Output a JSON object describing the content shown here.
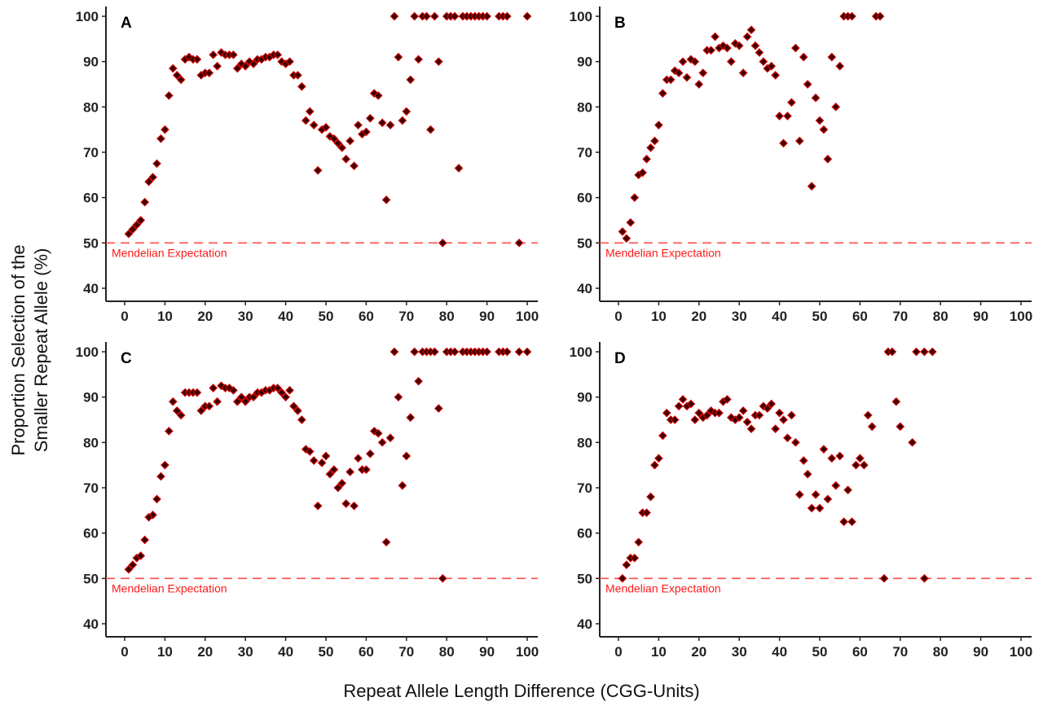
{
  "chart_data": {
    "type": "scatter",
    "xlabel": "Repeat Allele Length Difference (CGG-Units)",
    "ylabel_lines": [
      "Proportion Selection of the",
      "Smaller Repeat Allele (%)"
    ],
    "xlim": [
      -3,
      104
    ],
    "ylim": [
      37,
      101
    ],
    "xticks": [
      0,
      10,
      20,
      30,
      40,
      50,
      60,
      70,
      80,
      90,
      100
    ],
    "yticks": [
      40,
      50,
      60,
      70,
      80,
      90,
      100
    ],
    "grid": false,
    "marker": "diamond",
    "colors": {
      "marker_fill": "#3a0000",
      "marker_edge": "#cc0000",
      "reference_line": "#ff4d4d",
      "reference_label": "#ff1a1a"
    },
    "reference_line": {
      "y": 50,
      "label": "Mendelian Expectation",
      "style": "dashed"
    },
    "panels": [
      {
        "label": "A",
        "points": [
          [
            1,
            52
          ],
          [
            2,
            53
          ],
          [
            3,
            54
          ],
          [
            4,
            55
          ],
          [
            5,
            59
          ],
          [
            6,
            63.5
          ],
          [
            7,
            64.5
          ],
          [
            8,
            67.5
          ],
          [
            9,
            73
          ],
          [
            10,
            75
          ],
          [
            11,
            82.5
          ],
          [
            12,
            88.5
          ],
          [
            13,
            87
          ],
          [
            14,
            86
          ],
          [
            15,
            90.5
          ],
          [
            16,
            91
          ],
          [
            17,
            90.5
          ],
          [
            18,
            90.5
          ],
          [
            19,
            87
          ],
          [
            20,
            87.5
          ],
          [
            21,
            87.5
          ],
          [
            22,
            91.5
          ],
          [
            23,
            89
          ],
          [
            24,
            92
          ],
          [
            25,
            91.5
          ],
          [
            26,
            91.5
          ],
          [
            27,
            91.5
          ],
          [
            28,
            88.5
          ],
          [
            29,
            89.5
          ],
          [
            30,
            89
          ],
          [
            31,
            90
          ],
          [
            32,
            89.5
          ],
          [
            33,
            90.5
          ],
          [
            34,
            90.5
          ],
          [
            35,
            91
          ],
          [
            36,
            91
          ],
          [
            37,
            91.5
          ],
          [
            38,
            91.5
          ],
          [
            39,
            90
          ],
          [
            40,
            89.5
          ],
          [
            41,
            90
          ],
          [
            42,
            87
          ],
          [
            43,
            87
          ],
          [
            44,
            84.5
          ],
          [
            45,
            77
          ],
          [
            46,
            79
          ],
          [
            47,
            76
          ],
          [
            48,
            66
          ],
          [
            49,
            75
          ],
          [
            50,
            75.5
          ],
          [
            51,
            73.5
          ],
          [
            52,
            73
          ],
          [
            53,
            72
          ],
          [
            54,
            71
          ],
          [
            55,
            68.5
          ],
          [
            56,
            72.5
          ],
          [
            57,
            67
          ],
          [
            58,
            76
          ],
          [
            59,
            74
          ],
          [
            60,
            74.5
          ],
          [
            61,
            77.5
          ],
          [
            62,
            83
          ],
          [
            63,
            82.5
          ],
          [
            64,
            76.5
          ],
          [
            65,
            59.5
          ],
          [
            66,
            76
          ],
          [
            67,
            100
          ],
          [
            68,
            91
          ],
          [
            69,
            77
          ],
          [
            70,
            79
          ],
          [
            71,
            86
          ],
          [
            72,
            100
          ],
          [
            73,
            90.5
          ],
          [
            74,
            100
          ],
          [
            75,
            100
          ],
          [
            76,
            75
          ],
          [
            77,
            100
          ],
          [
            78,
            90
          ],
          [
            79,
            50
          ],
          [
            80,
            100
          ],
          [
            81,
            100
          ],
          [
            82,
            100
          ],
          [
            83,
            66.5
          ],
          [
            84,
            100
          ],
          [
            85,
            100
          ],
          [
            86,
            100
          ],
          [
            87,
            100
          ],
          [
            88,
            100
          ],
          [
            89,
            100
          ],
          [
            90,
            100
          ],
          [
            93,
            100
          ],
          [
            94,
            100
          ],
          [
            95,
            100
          ],
          [
            98,
            50
          ],
          [
            100,
            100
          ]
        ]
      },
      {
        "label": "B",
        "points": [
          [
            1,
            52.5
          ],
          [
            2,
            51
          ],
          [
            3,
            54.5
          ],
          [
            4,
            60
          ],
          [
            5,
            65
          ],
          [
            6,
            65.5
          ],
          [
            7,
            68.5
          ],
          [
            8,
            71
          ],
          [
            9,
            72.5
          ],
          [
            10,
            76
          ],
          [
            11,
            83
          ],
          [
            12,
            86
          ],
          [
            13,
            86
          ],
          [
            14,
            88
          ],
          [
            15,
            87.5
          ],
          [
            16,
            90
          ],
          [
            17,
            86.5
          ],
          [
            18,
            90.5
          ],
          [
            19,
            90
          ],
          [
            20,
            85
          ],
          [
            21,
            87.5
          ],
          [
            22,
            92.5
          ],
          [
            23,
            92.5
          ],
          [
            24,
            95.5
          ],
          [
            25,
            93
          ],
          [
            26,
            93.5
          ],
          [
            27,
            93
          ],
          [
            28,
            90
          ],
          [
            29,
            94
          ],
          [
            30,
            93.5
          ],
          [
            31,
            87.5
          ],
          [
            32,
            95.5
          ],
          [
            33,
            97
          ],
          [
            34,
            93.5
          ],
          [
            35,
            92
          ],
          [
            36,
            90
          ],
          [
            37,
            88.5
          ],
          [
            38,
            89
          ],
          [
            39,
            87
          ],
          [
            40,
            78
          ],
          [
            41,
            72
          ],
          [
            42,
            78
          ],
          [
            43,
            81
          ],
          [
            44,
            93
          ],
          [
            45,
            72.5
          ],
          [
            46,
            91
          ],
          [
            47,
            85
          ],
          [
            48,
            62.5
          ],
          [
            49,
            82
          ],
          [
            50,
            77
          ],
          [
            51,
            75
          ],
          [
            52,
            68.5
          ],
          [
            53,
            91
          ],
          [
            54,
            80
          ],
          [
            55,
            89
          ],
          [
            56,
            100
          ],
          [
            57,
            100
          ],
          [
            58,
            100
          ],
          [
            64,
            100
          ],
          [
            65,
            100
          ]
        ]
      },
      {
        "label": "C",
        "points": [
          [
            1,
            52
          ],
          [
            2,
            53
          ],
          [
            3,
            54.5
          ],
          [
            4,
            55
          ],
          [
            5,
            58.5
          ],
          [
            6,
            63.5
          ],
          [
            7,
            64
          ],
          [
            8,
            67.5
          ],
          [
            9,
            72.5
          ],
          [
            10,
            75
          ],
          [
            11,
            82.5
          ],
          [
            12,
            89
          ],
          [
            13,
            87
          ],
          [
            14,
            86
          ],
          [
            15,
            91
          ],
          [
            16,
            91
          ],
          [
            17,
            91
          ],
          [
            18,
            91
          ],
          [
            19,
            87
          ],
          [
            20,
            88
          ],
          [
            21,
            88
          ],
          [
            22,
            92
          ],
          [
            23,
            89
          ],
          [
            24,
            92.5
          ],
          [
            25,
            92
          ],
          [
            26,
            92
          ],
          [
            27,
            91.5
          ],
          [
            28,
            89
          ],
          [
            29,
            90
          ],
          [
            30,
            89
          ],
          [
            31,
            90
          ],
          [
            32,
            90
          ],
          [
            33,
            91
          ],
          [
            34,
            91
          ],
          [
            35,
            91.5
          ],
          [
            36,
            91.5
          ],
          [
            37,
            92
          ],
          [
            38,
            92
          ],
          [
            39,
            91
          ],
          [
            40,
            90
          ],
          [
            41,
            91.5
          ],
          [
            42,
            88
          ],
          [
            43,
            87
          ],
          [
            44,
            85
          ],
          [
            45,
            78.5
          ],
          [
            46,
            78
          ],
          [
            47,
            76
          ],
          [
            48,
            66
          ],
          [
            49,
            75.5
          ],
          [
            50,
            77
          ],
          [
            51,
            73
          ],
          [
            52,
            74
          ],
          [
            53,
            70
          ],
          [
            54,
            71
          ],
          [
            55,
            66.5
          ],
          [
            56,
            73.5
          ],
          [
            57,
            66
          ],
          [
            58,
            76.5
          ],
          [
            59,
            74
          ],
          [
            60,
            74
          ],
          [
            61,
            77.5
          ],
          [
            62,
            82.5
          ],
          [
            63,
            82
          ],
          [
            64,
            80
          ],
          [
            65,
            58
          ],
          [
            66,
            81
          ],
          [
            67,
            100
          ],
          [
            68,
            90
          ],
          [
            69,
            70.5
          ],
          [
            70,
            77
          ],
          [
            71,
            85.5
          ],
          [
            72,
            100
          ],
          [
            73,
            93.5
          ],
          [
            74,
            100
          ],
          [
            75,
            100
          ],
          [
            76,
            100
          ],
          [
            77,
            100
          ],
          [
            78,
            87.5
          ],
          [
            79,
            50
          ],
          [
            80,
            100
          ],
          [
            81,
            100
          ],
          [
            82,
            100
          ],
          [
            84,
            100
          ],
          [
            85,
            100
          ],
          [
            86,
            100
          ],
          [
            87,
            100
          ],
          [
            88,
            100
          ],
          [
            89,
            100
          ],
          [
            90,
            100
          ],
          [
            93,
            100
          ],
          [
            94,
            100
          ],
          [
            95,
            100
          ],
          [
            98,
            100
          ],
          [
            100,
            100
          ]
        ]
      },
      {
        "label": "D",
        "points": [
          [
            1,
            50
          ],
          [
            2,
            53
          ],
          [
            3,
            54.5
          ],
          [
            4,
            54.5
          ],
          [
            5,
            58
          ],
          [
            6,
            64.5
          ],
          [
            7,
            64.5
          ],
          [
            8,
            68
          ],
          [
            9,
            75
          ],
          [
            10,
            76.5
          ],
          [
            11,
            81.5
          ],
          [
            12,
            86.5
          ],
          [
            13,
            85
          ],
          [
            14,
            85
          ],
          [
            15,
            88
          ],
          [
            16,
            89.5
          ],
          [
            17,
            88
          ],
          [
            18,
            88.5
          ],
          [
            19,
            85
          ],
          [
            20,
            86.5
          ],
          [
            21,
            85.5
          ],
          [
            22,
            86
          ],
          [
            23,
            87
          ],
          [
            24,
            86.5
          ],
          [
            25,
            86.5
          ],
          [
            26,
            89
          ],
          [
            27,
            89.5
          ],
          [
            28,
            85.5
          ],
          [
            29,
            85
          ],
          [
            30,
            85.5
          ],
          [
            31,
            87
          ],
          [
            32,
            84.5
          ],
          [
            33,
            83
          ],
          [
            34,
            86
          ],
          [
            35,
            86
          ],
          [
            36,
            88
          ],
          [
            37,
            87.5
          ],
          [
            38,
            88.5
          ],
          [
            39,
            83
          ],
          [
            40,
            86.5
          ],
          [
            41,
            85
          ],
          [
            42,
            81
          ],
          [
            43,
            86
          ],
          [
            44,
            80
          ],
          [
            45,
            68.5
          ],
          [
            46,
            76
          ],
          [
            47,
            73
          ],
          [
            48,
            65.5
          ],
          [
            49,
            68.5
          ],
          [
            50,
            65.5
          ],
          [
            51,
            78.5
          ],
          [
            52,
            67.5
          ],
          [
            53,
            76.5
          ],
          [
            54,
            70.5
          ],
          [
            55,
            77
          ],
          [
            56,
            62.5
          ],
          [
            57,
            69.5
          ],
          [
            58,
            62.5
          ],
          [
            59,
            75
          ],
          [
            60,
            76.5
          ],
          [
            61,
            75
          ],
          [
            62,
            86
          ],
          [
            63,
            83.5
          ],
          [
            66,
            50
          ],
          [
            67,
            100
          ],
          [
            68,
            100
          ],
          [
            69,
            89
          ],
          [
            70,
            83.5
          ],
          [
            73,
            80
          ],
          [
            74,
            100
          ],
          [
            76,
            50
          ],
          [
            76,
            100
          ],
          [
            78,
            100
          ]
        ]
      }
    ]
  }
}
